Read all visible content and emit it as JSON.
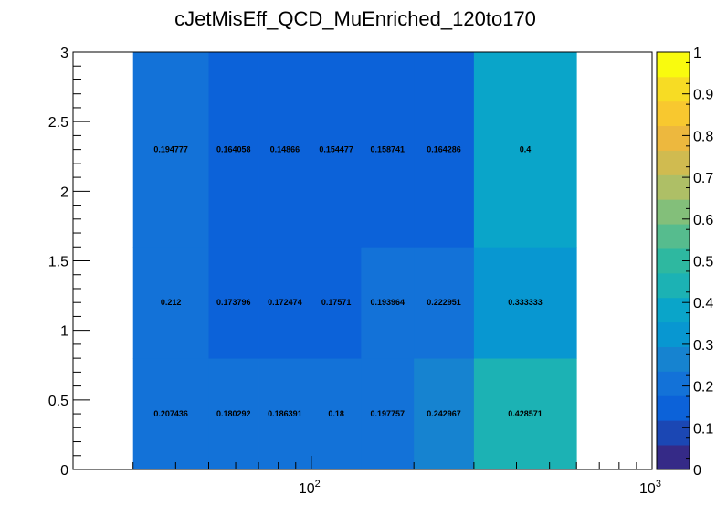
{
  "chart_data": {
    "type": "heatmap",
    "title": "cJetMisEff_QCD_MuEnriched_120to170",
    "xlabel": "",
    "ylabel": "",
    "x_scale": "log",
    "xlim": [
      20,
      1000
    ],
    "ylim": [
      0,
      3
    ],
    "x_edges": [
      30,
      50,
      70,
      100,
      140,
      200,
      300,
      600
    ],
    "y_edges": [
      0,
      0.8,
      1.6,
      3.0
    ],
    "cells": [
      {
        "row": 0,
        "values": [
          0.207436,
          0.180292,
          0.186391,
          0.18,
          0.197757,
          0.242967,
          0.428571
        ]
      },
      {
        "row": 1,
        "values": [
          0.212,
          0.173796,
          0.172474,
          0.17571,
          0.193964,
          0.222951,
          0.333333
        ]
      },
      {
        "row": 2,
        "values": [
          0.194777,
          0.164058,
          0.14866,
          0.154477,
          0.158741,
          0.164286,
          0.4
        ]
      }
    ],
    "cell_labels": [
      [
        "0.207436",
        "0.180292",
        "0.186391",
        "0.18",
        "0.197757",
        "0.242967",
        "0.428571"
      ],
      [
        "0.212",
        "0.173796",
        "0.172474",
        "0.17571",
        "0.193964",
        "0.222951",
        "0.333333"
      ],
      [
        "0.194777",
        "0.164058",
        "0.14866",
        "0.154477",
        "0.158741",
        "0.164286",
        "0.4"
      ]
    ],
    "x_tick_labels": [
      {
        "value": 100,
        "base": "10",
        "exp": "2"
      },
      {
        "value": 1000,
        "base": "10",
        "exp": "3"
      }
    ],
    "y_ticks": [
      0,
      0.5,
      1,
      1.5,
      2,
      2.5,
      3
    ],
    "y_tick_labels": [
      "0",
      "0.5",
      "1",
      "1.5",
      "2",
      "2.5",
      "3"
    ],
    "z_range": [
      0,
      1
    ],
    "z_ticks": [
      0,
      0.1,
      0.2,
      0.3,
      0.4,
      0.5,
      0.6,
      0.7,
      0.8,
      0.9,
      1
    ],
    "z_tick_labels": [
      "0",
      "0.1",
      "0.2",
      "0.3",
      "0.4",
      "0.5",
      "0.6",
      "0.7",
      "0.8",
      "0.9",
      "1"
    ],
    "palette": [
      "#352a87",
      "#1b47b4",
      "#0c62d9",
      "#1372d8",
      "#1683d0",
      "#0897d1",
      "#0aa5c9",
      "#1cb2b4",
      "#2eb8a0",
      "#56bc8e",
      "#83bf7a",
      "#aebf66",
      "#d0bb50",
      "#edb83e",
      "#f8c82f",
      "#f7dc24",
      "#f9fb0e"
    ],
    "grid": false,
    "legend": "colorbar-right"
  }
}
